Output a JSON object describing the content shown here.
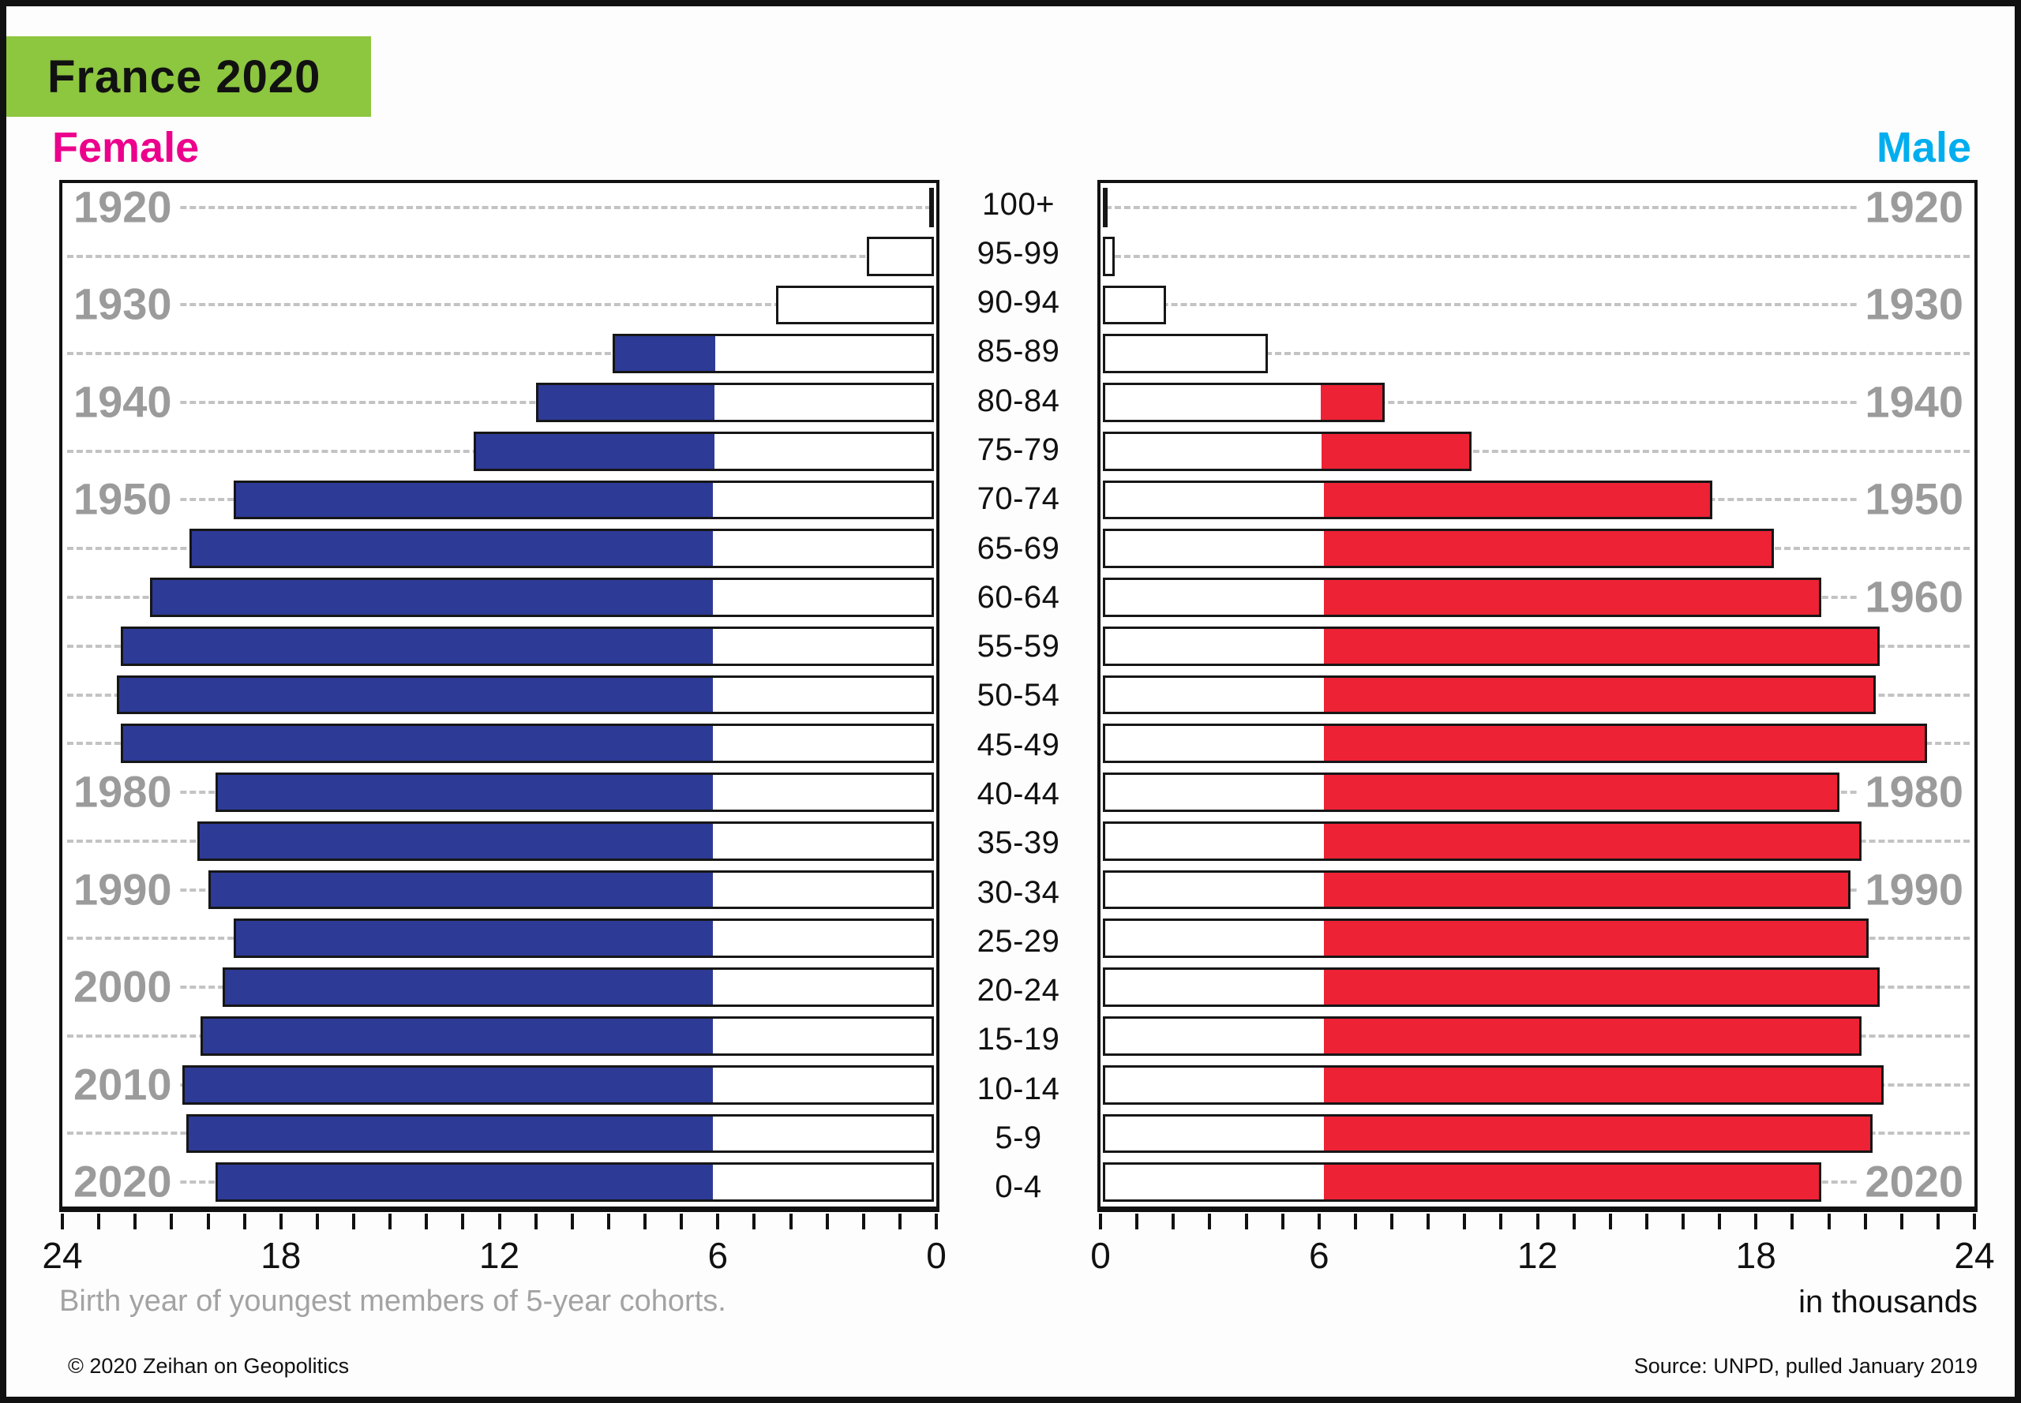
{
  "title": "France 2020",
  "header": {
    "female_label": "Female",
    "male_label": "Male"
  },
  "colors": {
    "title_bg": "#8dc63f",
    "female_accent": "#ec008c",
    "male_accent": "#00aeef",
    "female_bar": "#2d3a96",
    "male_bar": "#ed2235",
    "year_label": "#9b9b9b",
    "grid": "#c3c3c3",
    "frame": "#111111"
  },
  "chart_data": {
    "type": "bar",
    "subtype": "population-pyramid",
    "title": "France 2020",
    "unit": "in thousands",
    "axis": {
      "max": 24,
      "minor_step": 1,
      "white_segment_below": 6,
      "female_tick_labels": [
        "24",
        "18",
        "12",
        "6",
        "0"
      ],
      "male_tick_labels": [
        "0",
        "6",
        "12",
        "18",
        "24"
      ]
    },
    "age_groups": [
      "100+",
      "95-99",
      "90-94",
      "85-89",
      "80-84",
      "75-79",
      "70-74",
      "65-69",
      "60-64",
      "55-59",
      "50-54",
      "45-49",
      "40-44",
      "35-39",
      "30-34",
      "25-29",
      "20-24",
      "15-19",
      "10-14",
      "5-9",
      "0-4"
    ],
    "series": [
      {
        "name": "Female",
        "values": [
          0.2,
          1.9,
          4.4,
          8.9,
          11.0,
          12.7,
          19.3,
          20.5,
          21.6,
          22.4,
          22.5,
          22.4,
          19.8,
          20.3,
          20.0,
          19.3,
          19.6,
          20.2,
          20.7,
          20.6,
          19.8
        ]
      },
      {
        "name": "Male",
        "values": [
          0.1,
          0.4,
          1.8,
          4.6,
          7.8,
          10.2,
          16.8,
          18.5,
          19.8,
          21.4,
          21.3,
          22.7,
          20.3,
          20.9,
          20.6,
          21.1,
          21.4,
          20.9,
          21.5,
          21.2,
          19.8
        ]
      }
    ],
    "year_labels": {
      "female": [
        {
          "row": 0,
          "text": "1920"
        },
        {
          "row": 2,
          "text": "1930"
        },
        {
          "row": 4,
          "text": "1940"
        },
        {
          "row": 6,
          "text": "1950"
        },
        {
          "row": 12,
          "text": "1980"
        },
        {
          "row": 14,
          "text": "1990"
        },
        {
          "row": 16,
          "text": "2000"
        },
        {
          "row": 18,
          "text": "2010"
        },
        {
          "row": 20,
          "text": "2020"
        }
      ],
      "male": [
        {
          "row": 0,
          "text": "1920"
        },
        {
          "row": 2,
          "text": "1930"
        },
        {
          "row": 4,
          "text": "1940"
        },
        {
          "row": 6,
          "text": "1950"
        },
        {
          "row": 8,
          "text": "1960"
        },
        {
          "row": 12,
          "text": "1980"
        },
        {
          "row": 14,
          "text": "1990"
        },
        {
          "row": 20,
          "text": "2020"
        }
      ]
    }
  },
  "caption": "Birth year of youngest members of 5-year cohorts.",
  "unit_note": "in thousands",
  "footer": {
    "left": "© 2020 Zeihan on Geopolitics",
    "right": "Source: UNPD, pulled January 2019"
  }
}
